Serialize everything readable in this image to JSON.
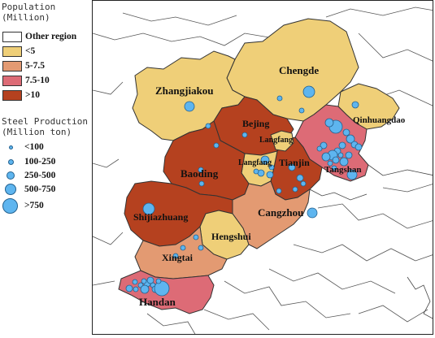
{
  "legend": {
    "population_title": "Population",
    "population_unit": "(Million)",
    "population_classes": [
      {
        "label": "Other region",
        "color": "#ffffff"
      },
      {
        "label": "<5",
        "color": "#efcf78"
      },
      {
        "label": "5-7.5",
        "color": "#e39a72"
      },
      {
        "label": "7.5-10",
        "color": "#dd6b76"
      },
      {
        "label": ">10",
        "color": "#b5411f"
      }
    ],
    "steel_title": "Steel Production",
    "steel_unit": "(Million  ton)",
    "steel_classes": [
      "<100",
      "100-250",
      "250-500",
      "500-750",
      ">750"
    ]
  },
  "cities": [
    {
      "name": "Zhangjiakou",
      "population_class": "<5"
    },
    {
      "name": "Chengde",
      "population_class": "<5"
    },
    {
      "name": "Qinhuangdao",
      "population_class": "<5"
    },
    {
      "name": "Bejing",
      "population_class": ">10"
    },
    {
      "name": "Langfang",
      "population_class": "<5"
    },
    {
      "name": "Tianjin",
      "population_class": ">10"
    },
    {
      "name": "Tangshan",
      "population_class": "7.5-10"
    },
    {
      "name": "Langfang",
      "population_class": "<5"
    },
    {
      "name": "Baoding",
      "population_class": ">10"
    },
    {
      "name": "Cangzhou",
      "population_class": "5-7.5"
    },
    {
      "name": "Shijiazhuang",
      "population_class": ">10"
    },
    {
      "name": "Hengshui",
      "population_class": "<5"
    },
    {
      "name": "Xingtai",
      "population_class": "5-7.5"
    },
    {
      "name": "Handan",
      "population_class": "7.5-10"
    }
  ],
  "colors": {
    "other": "#ffffff",
    "lt5": "#efcf78",
    "c5_75": "#e39a72",
    "c75_10": "#dd6b76",
    "gt10": "#b5411f",
    "steel_fill": "#5eb5ef",
    "steel_stroke": "#23618f"
  }
}
